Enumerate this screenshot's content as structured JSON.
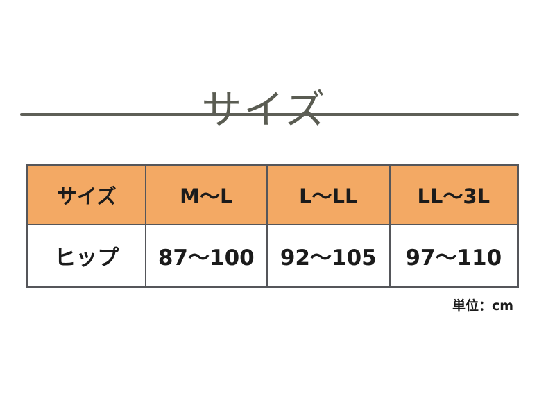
{
  "page": {
    "title": "サイズ",
    "unit_note": "単位：cm"
  },
  "colors": {
    "background": "#ffffff",
    "header_row_bg": "#f3a964",
    "table_border": "#55565a",
    "title_text": "#5a5c52",
    "divider_rule": "#5e5f57",
    "cell_text": "#1b1b1b"
  },
  "chart_data": {
    "type": "table",
    "title": "サイズ",
    "columns": [
      "サイズ",
      "M～L",
      "L～LL",
      "LL～3L"
    ],
    "rows": [
      {
        "label": "ヒップ",
        "values": [
          "87～100",
          "92～105",
          "97～110"
        ]
      }
    ],
    "unit": "単位：cm",
    "layout_hints": {
      "header_fill": "#f3a964",
      "first_column_is_row_label": true,
      "legend": "none",
      "grid": "full-borders"
    }
  }
}
